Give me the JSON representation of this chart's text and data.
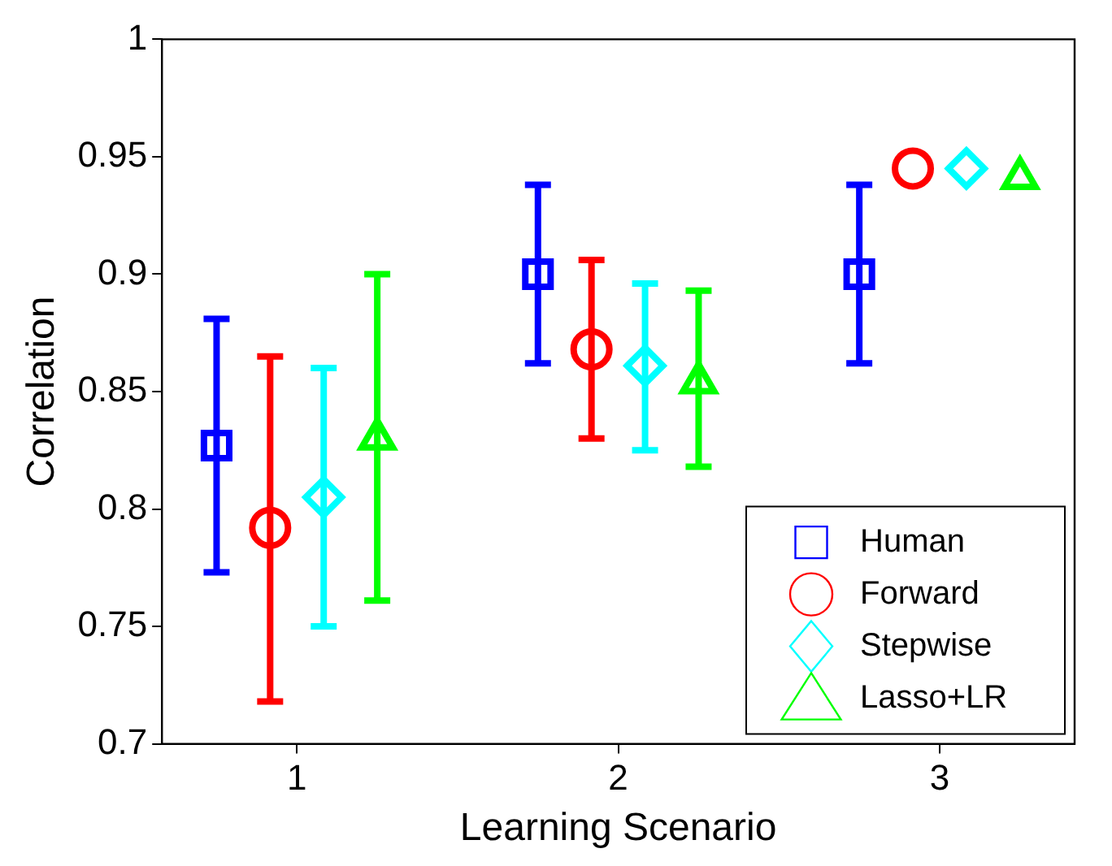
{
  "chart_data": {
    "type": "scatter",
    "xlabel": "Learning Scenario",
    "ylabel": "Correlation",
    "categories": [
      "1",
      "2",
      "3"
    ],
    "ylim": [
      0.7,
      1
    ],
    "yticks": [
      0.7,
      0.75,
      0.8,
      0.85,
      0.9,
      0.95,
      1
    ],
    "grid": false,
    "legend": "bottom right",
    "series": [
      {
        "name": "Human",
        "color": "#0000ff",
        "marker": "square",
        "values": [
          0.827,
          0.9,
          0.9
        ],
        "errors": [
          [
            0.773,
            0.881
          ],
          [
            0.862,
            0.938
          ],
          [
            0.862,
            0.938
          ]
        ]
      },
      {
        "name": "Forward",
        "color": "#ff0000",
        "marker": "circle",
        "values": [
          0.792,
          0.868,
          0.945
        ],
        "errors": [
          [
            0.718,
            0.865
          ],
          [
            0.83,
            0.906
          ],
          null
        ]
      },
      {
        "name": "Stepwise",
        "color": "#00ffff",
        "marker": "diamond",
        "values": [
          0.805,
          0.861,
          0.945
        ],
        "errors": [
          [
            0.75,
            0.86
          ],
          [
            0.825,
            0.896
          ],
          null
        ]
      },
      {
        "name": "Lasso+LR",
        "color": "#00ff00",
        "marker": "triangle",
        "values": [
          0.83,
          0.854,
          0.941
        ],
        "errors": [
          [
            0.761,
            0.9
          ],
          [
            0.818,
            0.893
          ],
          null
        ]
      }
    ]
  }
}
